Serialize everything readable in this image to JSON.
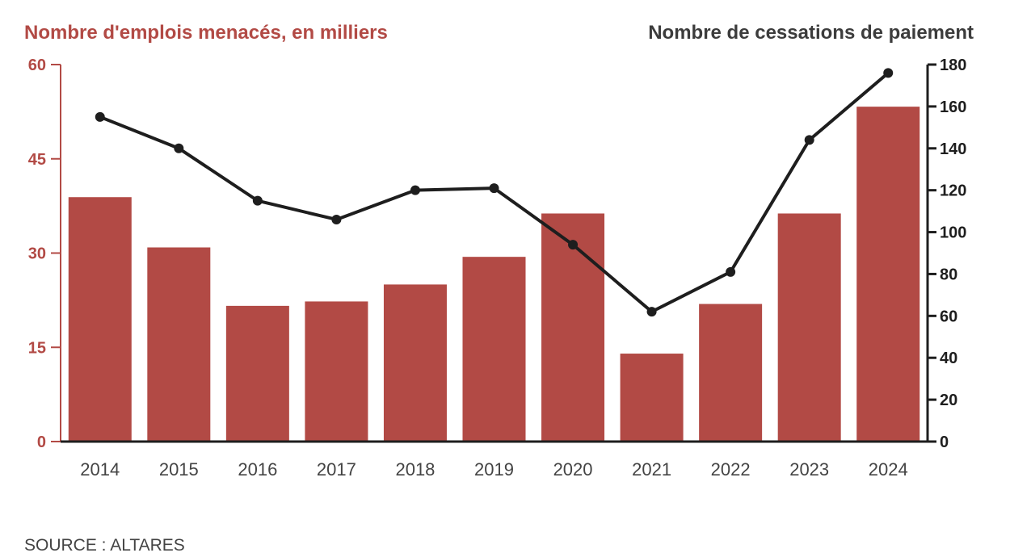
{
  "chart_data": {
    "type": "bar",
    "categories": [
      "2014",
      "2015",
      "2016",
      "2017",
      "2018",
      "2019",
      "2020",
      "2021",
      "2022",
      "2023",
      "2024"
    ],
    "series": [
      {
        "name": "Nombre d'emplois menacés, en milliers",
        "type": "bar",
        "axis": "left",
        "color": "#b24a45",
        "values": [
          38.9,
          30.9,
          21.6,
          22.3,
          25.0,
          29.4,
          36.3,
          14.0,
          21.9,
          36.3,
          53.3
        ]
      },
      {
        "name": "Nombre de cessations de paiement",
        "type": "line",
        "axis": "right",
        "color": "#1e1e1e",
        "values": [
          155,
          140,
          115,
          106,
          120,
          121,
          94,
          62,
          81,
          144,
          176
        ]
      }
    ],
    "left_axis": {
      "label": "Nombre d'emplois menacés, en milliers",
      "ylim": [
        0,
        60
      ],
      "ticks": [
        0,
        15,
        30,
        45,
        60
      ],
      "color": "#b24a45"
    },
    "right_axis": {
      "label": "Nombre de cessations de paiement",
      "ylim": [
        0,
        180
      ],
      "ticks": [
        0,
        20,
        40,
        60,
        80,
        100,
        120,
        140,
        160,
        180
      ],
      "color": "#1e1e1e"
    },
    "grid": false,
    "source": "SOURCE : ALTARES"
  }
}
